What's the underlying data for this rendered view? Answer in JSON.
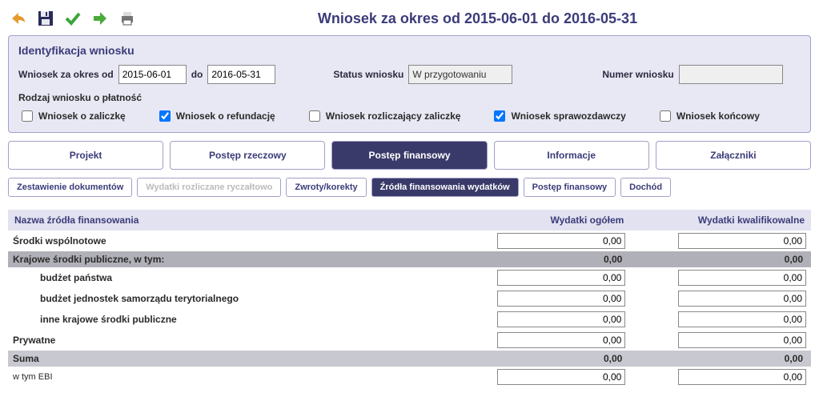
{
  "title": "Wniosek za okres od 2015-06-01 do 2016-05-31",
  "panel": {
    "title": "Identyfikacja wniosku",
    "period_label": "Wniosek za okres od",
    "date_from": "2015-06-01",
    "to_label": "do",
    "date_to": "2016-05-31",
    "status_label": "Status wniosku",
    "status_value": "W przygotowaniu",
    "number_label": "Numer wniosku",
    "number_value": "",
    "type_label": "Rodzaj wniosku o płatność",
    "checks": {
      "zaliczke": "Wniosek o zaliczkę",
      "refundacje": "Wniosek o refundację",
      "rozliczajacy": "Wniosek rozliczający zaliczkę",
      "sprawozdawczy": "Wniosek sprawozdawczy",
      "koncowy": "Wniosek końcowy"
    }
  },
  "main_tabs": [
    "Projekt",
    "Postęp rzeczowy",
    "Postęp finansowy",
    "Informacje",
    "Załączniki"
  ],
  "sub_tabs": [
    "Zestawienie dokumentów",
    "Wydatki rozliczane ryczałtowo",
    "Zwroty/korekty",
    "Źródła finansowania wydatków",
    "Postęp finansowy",
    "Dochód"
  ],
  "table": {
    "headers": [
      "Nazwa źródła finansowania",
      "Wydatki ogółem",
      "Wydatki kwalifikowalne"
    ],
    "rows": [
      {
        "label": "Środki wspólnotowe",
        "v1": "0,00",
        "v2": "0,00",
        "style": "bold",
        "input": true
      },
      {
        "label": "Krajowe środki publiczne, w tym:",
        "v1": "0,00",
        "v2": "0,00",
        "style": "section"
      },
      {
        "label": "budżet państwa",
        "v1": "0,00",
        "v2": "0,00",
        "style": "indent bold",
        "input": true
      },
      {
        "label": "budżet jednostek samorządu terytorialnego",
        "v1": "0,00",
        "v2": "0,00",
        "style": "indent bold",
        "input": true
      },
      {
        "label": "inne krajowe środki publiczne",
        "v1": "0,00",
        "v2": "0,00",
        "style": "indent bold",
        "input": true
      },
      {
        "label": "Prywatne",
        "v1": "0,00",
        "v2": "0,00",
        "style": "bold",
        "input": true
      },
      {
        "label": "Suma",
        "v1": "0,00",
        "v2": "0,00",
        "style": "sum"
      },
      {
        "label": "w tym EBI",
        "v1": "0,00",
        "v2": "0,00",
        "style": "small",
        "input": true
      }
    ]
  }
}
